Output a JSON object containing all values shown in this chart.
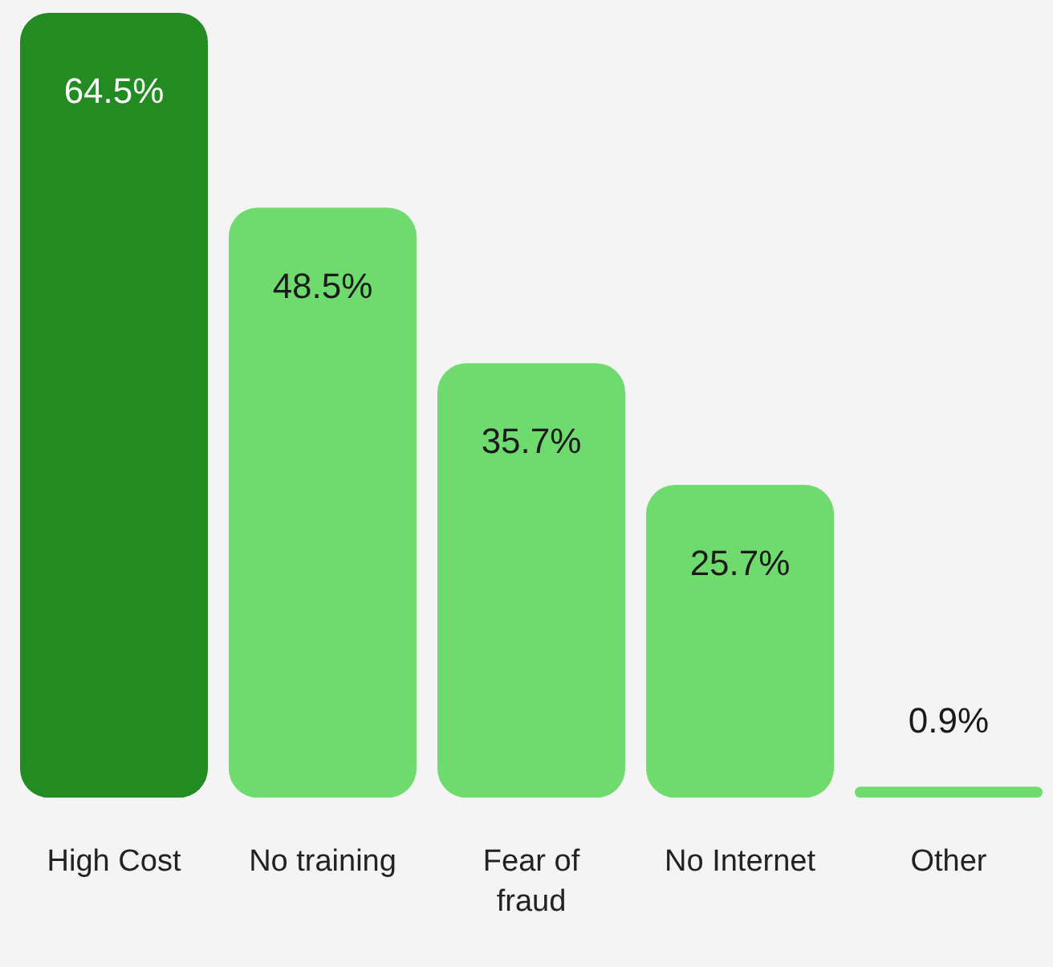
{
  "chart_data": {
    "type": "bar",
    "categories": [
      "High Cost",
      "No training",
      "Fear of fraud",
      "No Internet",
      "Other"
    ],
    "values": [
      64.5,
      48.5,
      35.7,
      25.7,
      0.9
    ],
    "colors": [
      "#228b22",
      "#6fdb6f",
      "#6fdb6f",
      "#6fdb6f",
      "#6fdb6f"
    ],
    "value_labels": [
      "64.5%",
      "48.5%",
      "35.7%",
      "25.7%",
      "0.9%"
    ],
    "grid": false,
    "legend": false
  }
}
